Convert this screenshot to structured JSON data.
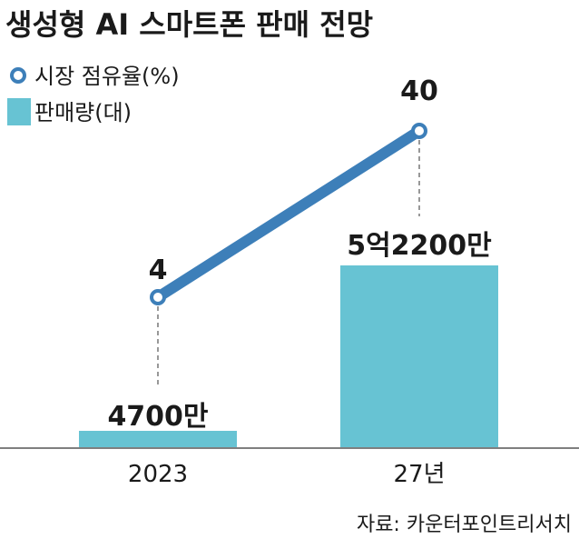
{
  "chart_data": {
    "type": "bar+line",
    "title": "생성형 AI 스마트폰 판매 전망",
    "categories": [
      "2023",
      "27년"
    ],
    "series": [
      {
        "name": "판매량(대)",
        "kind": "bar",
        "values": [
          4700,
          52200
        ],
        "unit": "만",
        "labels": [
          "4700만",
          "5억2200만"
        ]
      },
      {
        "name": "시장 점유율(%)",
        "kind": "line",
        "values": [
          4,
          40
        ],
        "labels": [
          "4",
          "40"
        ]
      }
    ],
    "source": "자료: 카운터포인트리서치"
  },
  "colors": {
    "bar": "#67c3d3",
    "line": "#3d7fb9",
    "text": "#1a1a1a",
    "axis": "#555555",
    "guide": "#555555"
  }
}
